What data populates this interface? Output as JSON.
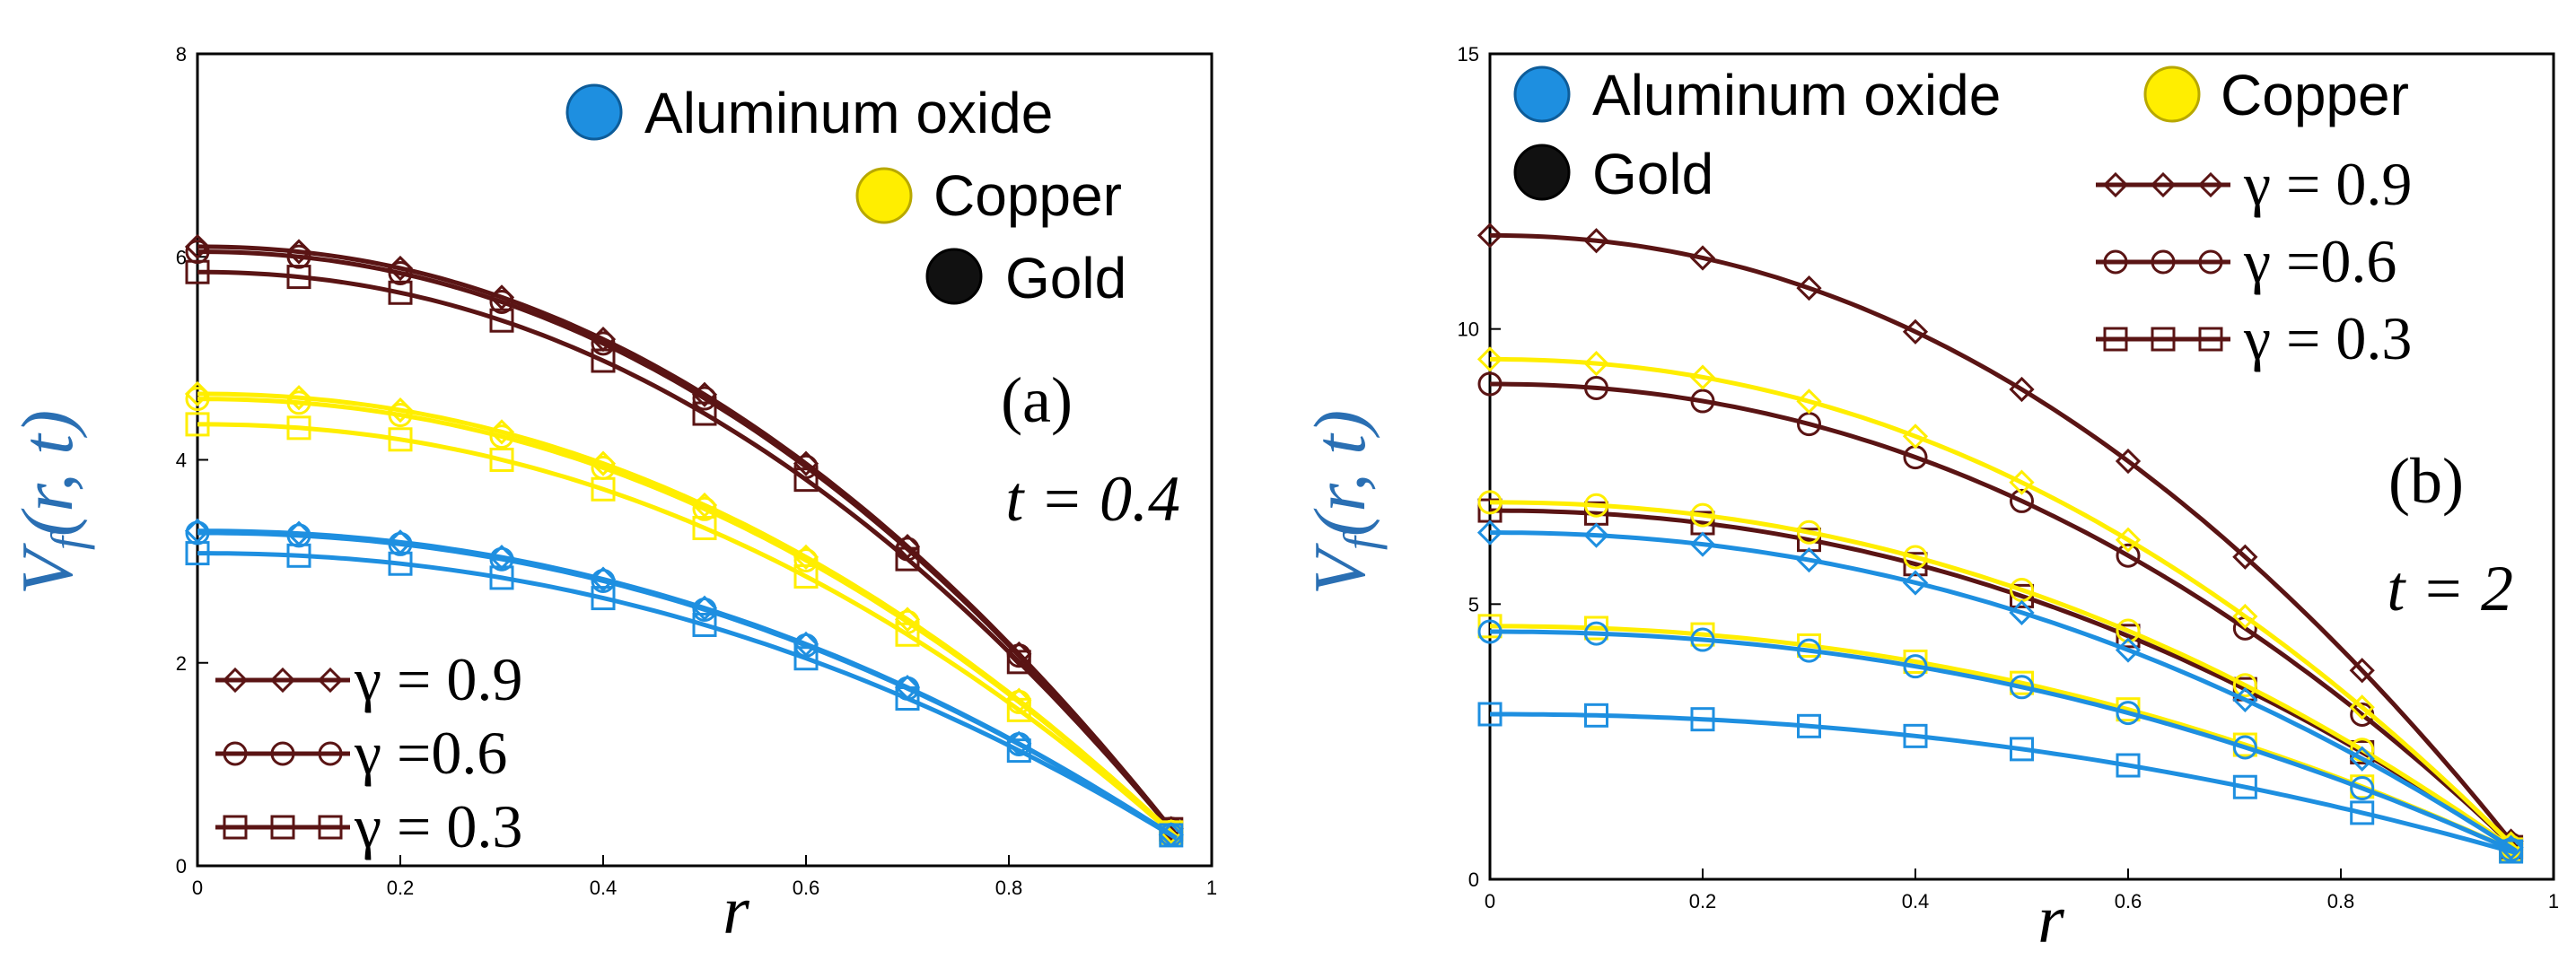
{
  "chart_data": [
    {
      "type": "line",
      "panel_label": "(a)",
      "time_label": "t = 0.4",
      "xlabel": "r",
      "ylabel": "Vf(r,t)",
      "xlim": [
        0,
        1
      ],
      "ylim": [
        0,
        8
      ],
      "xticks": [
        0,
        0.2,
        0.4,
        0.6,
        0.8,
        1
      ],
      "xtick_labels": [
        "0",
        "0.2",
        "0.4",
        "0.6",
        "0.8",
        "1"
      ],
      "yticks": [
        0,
        2,
        4,
        6,
        8
      ],
      "ytick_labels": [
        "0",
        "2",
        "4",
        "6",
        "8"
      ],
      "grid": false,
      "marker_x": [
        0,
        0.1,
        0.2,
        0.3,
        0.4,
        0.5,
        0.6,
        0.7,
        0.81,
        0.96
      ],
      "material_legend": [
        {
          "label": "Aluminum oxide",
          "color": "#1e8fe0"
        },
        {
          "label": "Copper",
          "color": "#ffee00"
        },
        {
          "label": "Gold",
          "color": "#111111"
        }
      ],
      "gamma_legend": [
        {
          "label": "γ = 0.9",
          "marker": "diamond"
        },
        {
          "label": "γ =0.6",
          "marker": "circle"
        },
        {
          "label": "γ = 0.3",
          "marker": "square"
        }
      ],
      "series": [
        {
          "name": "Gold γ=0.9",
          "material": "Gold",
          "gamma": 0.9,
          "color": "#5a1414",
          "marker": "diamond",
          "v0": 6.1
        },
        {
          "name": "Gold γ=0.6",
          "material": "Gold",
          "gamma": 0.6,
          "color": "#5a1414",
          "marker": "circle",
          "v0": 6.05
        },
        {
          "name": "Gold γ=0.3",
          "material": "Gold",
          "gamma": 0.3,
          "color": "#5a1414",
          "marker": "square",
          "v0": 5.85
        },
        {
          "name": "Copper γ=0.9",
          "material": "Copper",
          "gamma": 0.9,
          "color": "#ffee00",
          "marker": "diamond",
          "v0": 4.65
        },
        {
          "name": "Copper γ=0.6",
          "material": "Copper",
          "gamma": 0.6,
          "color": "#ffee00",
          "marker": "circle",
          "v0": 4.6
        },
        {
          "name": "Copper γ=0.3",
          "material": "Copper",
          "gamma": 0.3,
          "color": "#ffee00",
          "marker": "square",
          "v0": 4.35
        },
        {
          "name": "Aluminum oxide γ=0.9",
          "material": "Aluminum oxide",
          "gamma": 0.9,
          "color": "#1e8fe0",
          "marker": "diamond",
          "v0": 3.3
        },
        {
          "name": "Aluminum oxide γ=0.6",
          "material": "Aluminum oxide",
          "gamma": 0.6,
          "color": "#1e8fe0",
          "marker": "circle",
          "v0": 3.28
        },
        {
          "name": "Aluminum oxide γ=0.3",
          "material": "Aluminum oxide",
          "gamma": 0.3,
          "color": "#1e8fe0",
          "marker": "square",
          "v0": 3.08
        }
      ]
    },
    {
      "type": "line",
      "panel_label": "(b)",
      "time_label": "t = 2",
      "xlabel": "r",
      "ylabel": "Vf(r,t)",
      "xlim": [
        0,
        1
      ],
      "ylim": [
        0,
        15
      ],
      "xticks": [
        0,
        0.2,
        0.4,
        0.6,
        0.8,
        1
      ],
      "xtick_labels": [
        "0",
        "0.2",
        "0.4",
        "0.6",
        "0.8",
        "1"
      ],
      "yticks": [
        0,
        5,
        10,
        15
      ],
      "ytick_labels": [
        "0",
        "5",
        "10",
        "15"
      ],
      "grid": false,
      "marker_x": [
        0,
        0.1,
        0.2,
        0.3,
        0.4,
        0.5,
        0.6,
        0.71,
        0.82,
        0.96
      ],
      "material_legend": [
        {
          "label": "Aluminum oxide",
          "color": "#1e8fe0"
        },
        {
          "label": "Copper",
          "color": "#ffee00"
        },
        {
          "label": "Gold",
          "color": "#111111"
        }
      ],
      "gamma_legend": [
        {
          "label": "γ = 0.9",
          "marker": "diamond"
        },
        {
          "label": "γ =0.6",
          "marker": "circle"
        },
        {
          "label": "γ = 0.3",
          "marker": "square"
        }
      ],
      "series": [
        {
          "name": "Gold γ=0.9",
          "material": "Gold",
          "gamma": 0.9,
          "color": "#5a1414",
          "marker": "diamond",
          "v0": 11.7
        },
        {
          "name": "Gold γ=0.6",
          "material": "Gold",
          "gamma": 0.6,
          "color": "#5a1414",
          "marker": "circle",
          "v0": 9.0
        },
        {
          "name": "Gold γ=0.3",
          "material": "Gold",
          "gamma": 0.3,
          "color": "#5a1414",
          "marker": "square",
          "v0": 6.7
        },
        {
          "name": "Copper γ=0.9",
          "material": "Copper",
          "gamma": 0.9,
          "color": "#ffee00",
          "marker": "diamond",
          "v0": 9.45
        },
        {
          "name": "Copper γ=0.6",
          "material": "Copper",
          "gamma": 0.6,
          "color": "#ffee00",
          "marker": "circle",
          "v0": 6.85
        },
        {
          "name": "Copper γ=0.3",
          "material": "Copper",
          "gamma": 0.3,
          "color": "#ffee00",
          "marker": "square",
          "v0": 4.6
        },
        {
          "name": "Aluminum oxide γ=0.9",
          "material": "Aluminum oxide",
          "gamma": 0.9,
          "color": "#1e8fe0",
          "marker": "diamond",
          "v0": 6.3
        },
        {
          "name": "Aluminum oxide γ=0.6",
          "material": "Aluminum oxide",
          "gamma": 0.6,
          "color": "#1e8fe0",
          "marker": "circle",
          "v0": 4.5
        },
        {
          "name": "Aluminum oxide γ=0.3",
          "material": "Aluminum oxide",
          "gamma": 0.3,
          "color": "#1e8fe0",
          "marker": "square",
          "v0": 3.0
        }
      ]
    }
  ]
}
